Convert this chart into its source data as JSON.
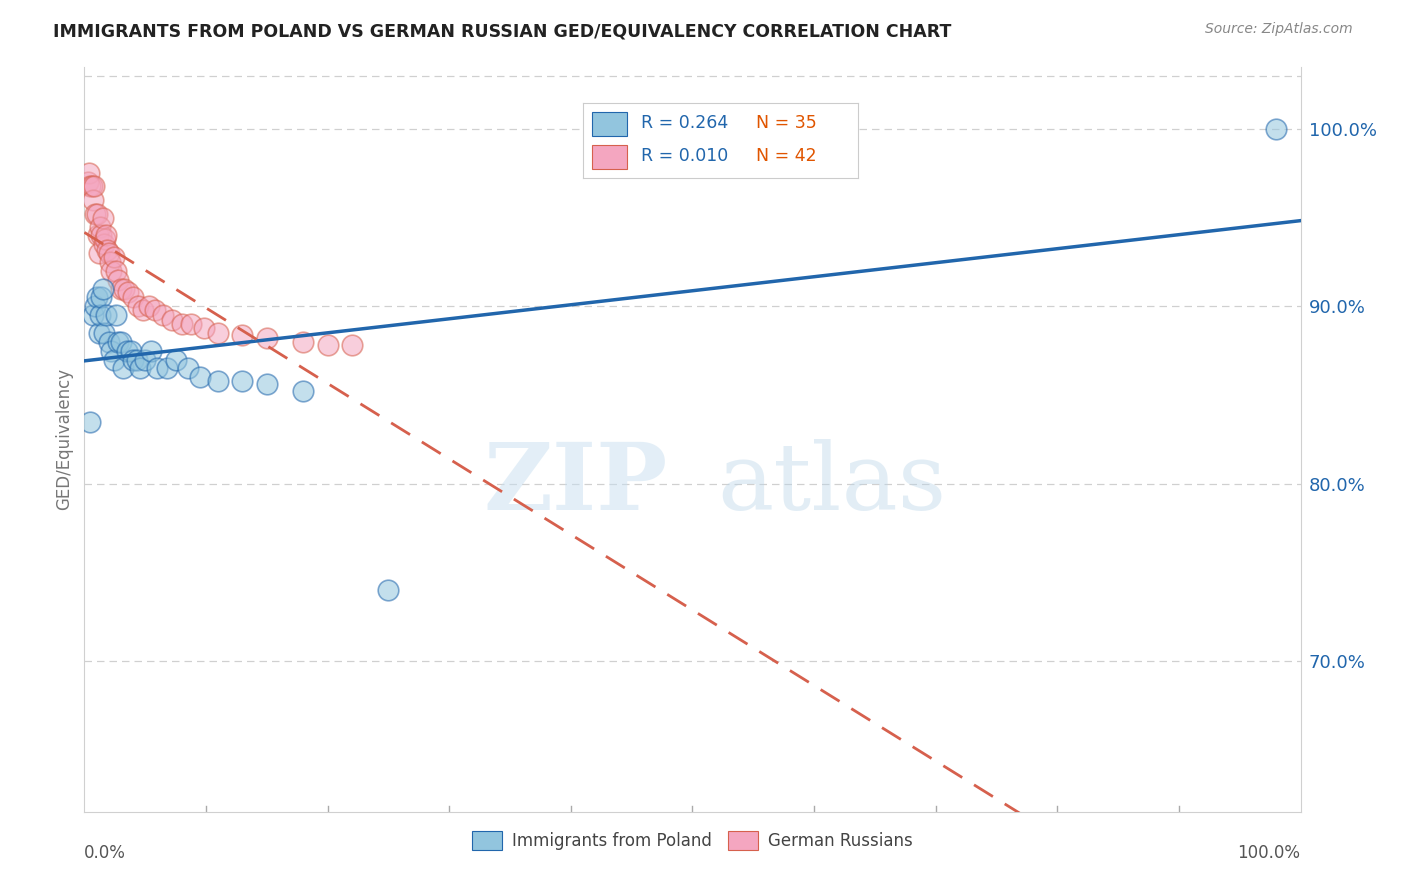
{
  "title": "IMMIGRANTS FROM POLAND VS GERMAN RUSSIAN GED/EQUIVALENCY CORRELATION CHART",
  "source": "Source: ZipAtlas.com",
  "ylabel": "GED/Equivalency",
  "watermark_zip": "ZIP",
  "watermark_atlas": "atlas",
  "legend_r1": "R = 0.264",
  "legend_n1": "N = 35",
  "legend_r2": "R = 0.010",
  "legend_n2": "N = 42",
  "xmin": 0.0,
  "xmax": 1.0,
  "ymin": 0.615,
  "ymax": 1.035,
  "yticks": [
    0.7,
    0.8,
    0.9,
    1.0
  ],
  "ytick_labels": [
    "70.0%",
    "80.0%",
    "90.0%",
    "100.0%"
  ],
  "color_blue": "#92c5de",
  "color_pink": "#f4a6c0",
  "trendline_blue": "#2166ac",
  "trendline_pink": "#d6604d",
  "poland_x": [
    0.005,
    0.007,
    0.009,
    0.01,
    0.012,
    0.013,
    0.014,
    0.015,
    0.016,
    0.018,
    0.02,
    0.022,
    0.024,
    0.026,
    0.028,
    0.03,
    0.032,
    0.035,
    0.038,
    0.04,
    0.043,
    0.046,
    0.05,
    0.055,
    0.06,
    0.068,
    0.075,
    0.085,
    0.095,
    0.11,
    0.13,
    0.15,
    0.18,
    0.25,
    0.98
  ],
  "poland_y": [
    0.835,
    0.895,
    0.9,
    0.905,
    0.885,
    0.895,
    0.905,
    0.91,
    0.885,
    0.895,
    0.88,
    0.875,
    0.87,
    0.895,
    0.88,
    0.88,
    0.865,
    0.875,
    0.875,
    0.87,
    0.87,
    0.865,
    0.87,
    0.875,
    0.865,
    0.865,
    0.87,
    0.865,
    0.86,
    0.858,
    0.858,
    0.856,
    0.852,
    0.74,
    1.0
  ],
  "german_x": [
    0.003,
    0.004,
    0.005,
    0.006,
    0.007,
    0.008,
    0.009,
    0.01,
    0.011,
    0.012,
    0.013,
    0.014,
    0.015,
    0.016,
    0.017,
    0.018,
    0.019,
    0.02,
    0.021,
    0.022,
    0.024,
    0.026,
    0.028,
    0.03,
    0.033,
    0.036,
    0.04,
    0.044,
    0.048,
    0.053,
    0.058,
    0.065,
    0.072,
    0.08,
    0.088,
    0.098,
    0.11,
    0.13,
    0.15,
    0.18,
    0.2,
    0.22
  ],
  "german_y": [
    0.97,
    0.975,
    0.968,
    0.968,
    0.96,
    0.968,
    0.952,
    0.952,
    0.94,
    0.93,
    0.945,
    0.94,
    0.95,
    0.935,
    0.938,
    0.94,
    0.932,
    0.93,
    0.925,
    0.92,
    0.928,
    0.92,
    0.915,
    0.91,
    0.91,
    0.908,
    0.905,
    0.9,
    0.898,
    0.9,
    0.898,
    0.895,
    0.892,
    0.89,
    0.89,
    0.888,
    0.885,
    0.884,
    0.882,
    0.88,
    0.878,
    0.878
  ],
  "grid_color": "#d0d0d0",
  "spine_color": "#d0d0d0"
}
